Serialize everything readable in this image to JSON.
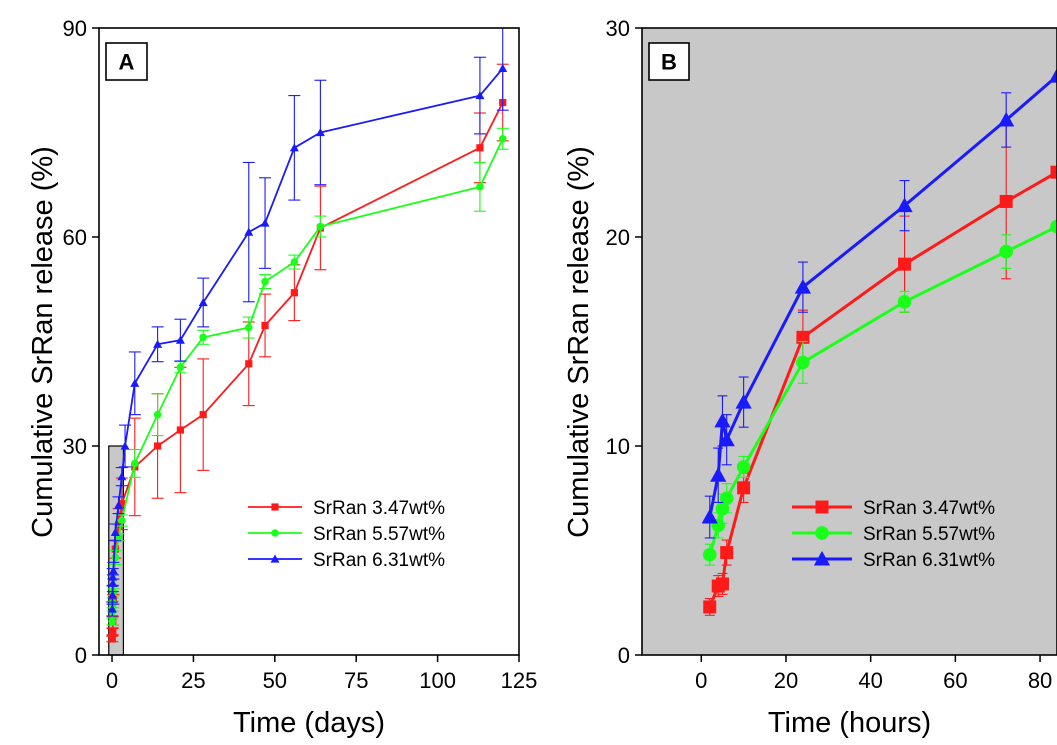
{
  "figure": {
    "background": "#ffffff"
  },
  "chart_data": [
    {
      "type": "line",
      "panel_label": "A",
      "xlabel": "Time (days)",
      "ylabel": "Cumulative SrRan release (%)",
      "xlim": [
        -4,
        125
      ],
      "ylim": [
        0,
        90
      ],
      "xticks": [
        0,
        25,
        50,
        75,
        100,
        125
      ],
      "yticks": [
        0,
        30,
        60,
        90
      ],
      "background": "#ffffff",
      "inset_highlight": {
        "x": [
          -1,
          3.5
        ],
        "y": [
          0,
          30
        ],
        "color": "#c8c8c8"
      },
      "grid": false,
      "legend_position": "bottom-right",
      "series": [
        {
          "name": "SrRan 3.47wt%",
          "color": "#ff1a1a",
          "marker": "square",
          "x": [
            0.08,
            0.17,
            0.21,
            0.25,
            0.42,
            1,
            2,
            3,
            7,
            14,
            21,
            28,
            42,
            47,
            56,
            64,
            113,
            120
          ],
          "y": [
            2.3,
            3.3,
            3.4,
            4.9,
            8.0,
            15.2,
            18.7,
            21.7,
            27.0,
            30.0,
            32.3,
            34.5,
            41.8,
            47.3,
            52.0,
            61.3,
            72.8,
            79.3
          ],
          "err": [
            0.4,
            0.5,
            0.5,
            0.6,
            0.7,
            1.3,
            2.3,
            3.7,
            7.0,
            7.5,
            9.0,
            8.0,
            6.0,
            4.5,
            4.0,
            6.0,
            5.0,
            5.5
          ]
        },
        {
          "name": "SrRan 5.57wt%",
          "color": "#1aff1a",
          "marker": "circle",
          "x": [
            0.08,
            0.17,
            0.21,
            0.25,
            0.42,
            1,
            2,
            3,
            7,
            14,
            21,
            28,
            42,
            47,
            56,
            64,
            113,
            120
          ],
          "y": [
            4.8,
            6.2,
            7.0,
            7.5,
            9.0,
            14.0,
            16.9,
            19.3,
            27.5,
            34.5,
            41.3,
            45.6,
            47.0,
            53.6,
            56.4,
            61.5,
            67.2,
            74.1
          ],
          "err": [
            0.5,
            0.6,
            0.7,
            0.7,
            0.5,
            1.0,
            0.5,
            0.8,
            2.0,
            3.0,
            0.8,
            1.0,
            1.5,
            1.0,
            1.0,
            1.5,
            3.5,
            1.5
          ]
        },
        {
          "name": "SrRan 6.31wt%",
          "color": "#1a1aff",
          "marker": "triangle",
          "x": [
            0.08,
            0.17,
            0.21,
            0.25,
            0.42,
            1,
            2,
            3,
            4,
            7,
            14,
            21,
            28,
            42,
            47,
            56,
            64,
            113,
            120
          ],
          "y": [
            6.6,
            8.6,
            11.2,
            10.3,
            12.1,
            17.6,
            21.5,
            25.6,
            30.0,
            39.0,
            44.6,
            45.2,
            50.6,
            60.7,
            62.0,
            72.8,
            75.0,
            80.3,
            84.2
          ],
          "err": [
            1.0,
            1.3,
            1.2,
            1.2,
            1.2,
            1.2,
            1.2,
            1.3,
            3.0,
            4.5,
            2.5,
            3.0,
            3.5,
            10.0,
            6.5,
            7.5,
            7.5,
            5.5,
            6.0
          ]
        }
      ]
    },
    {
      "type": "line",
      "panel_label": "B",
      "xlabel": "Time (hours)",
      "ylabel": "Cumulative SrRan release (%)",
      "xlim": [
        -14,
        84
      ],
      "ylim": [
        0,
        30
      ],
      "xticks": [
        0,
        20,
        40,
        60,
        80
      ],
      "yticks": [
        0,
        10,
        20,
        30
      ],
      "background": "#c8c8c8",
      "grid": false,
      "legend_position": "bottom-right",
      "series": [
        {
          "name": "SrRan 3.47wt%",
          "color": "#ff1a1a",
          "marker": "square",
          "x": [
            2,
            4,
            5,
            6,
            10,
            24,
            48,
            72,
            84
          ],
          "y": [
            2.3,
            3.3,
            3.4,
            4.9,
            8.0,
            15.2,
            18.7,
            21.7,
            23.1
          ],
          "err": [
            0.4,
            0.5,
            0.5,
            0.6,
            0.7,
            1.3,
            2.3,
            3.7,
            0
          ]
        },
        {
          "name": "SrRan 5.57wt%",
          "color": "#1aff1a",
          "marker": "circle",
          "x": [
            2,
            4,
            5,
            6,
            10,
            24,
            48,
            72,
            84
          ],
          "y": [
            4.8,
            6.2,
            7.0,
            7.5,
            9.0,
            14.0,
            16.9,
            19.3,
            20.5
          ],
          "err": [
            0.5,
            0.6,
            0.7,
            0.7,
            0.5,
            1.0,
            0.5,
            0.8,
            0
          ]
        },
        {
          "name": "SrRan 6.31wt%",
          "color": "#1a1aff",
          "marker": "triangle",
          "x": [
            2,
            4,
            5,
            6,
            10,
            24,
            48,
            72,
            84
          ],
          "y": [
            6.6,
            8.6,
            11.2,
            10.3,
            12.1,
            17.6,
            21.5,
            25.6,
            27.7
          ],
          "err": [
            1.0,
            1.3,
            1.2,
            1.2,
            1.2,
            1.2,
            1.2,
            1.3,
            0
          ]
        }
      ]
    }
  ]
}
